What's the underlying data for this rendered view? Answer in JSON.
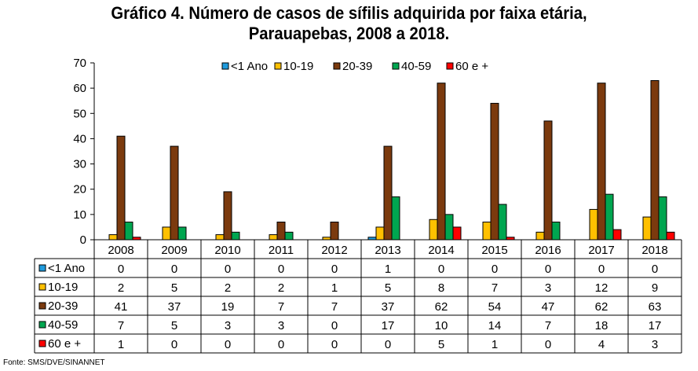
{
  "title_line1": "Gráfico 4. Número de casos de sífilis adquirida por faixa etária,",
  "title_line2": "Parauapebas, 2008 a 2018.",
  "source": "Fonte: SMS/DVE/SINANNET",
  "chart_data": {
    "type": "bar",
    "categories": [
      "2008",
      "2009",
      "2010",
      "2011",
      "2012",
      "2013",
      "2014",
      "2015",
      "2016",
      "2017",
      "2018"
    ],
    "series": [
      {
        "name": "<1 Ano",
        "color": "#1F9BDD",
        "values": [
          0,
          0,
          0,
          0,
          0,
          1,
          0,
          0,
          0,
          0,
          0
        ]
      },
      {
        "name": "10-19",
        "color": "#FFC000",
        "values": [
          2,
          5,
          2,
          2,
          1,
          5,
          8,
          7,
          3,
          12,
          9
        ]
      },
      {
        "name": "20-39",
        "color": "#7B3A0E",
        "values": [
          41,
          37,
          19,
          7,
          7,
          37,
          62,
          54,
          47,
          62,
          63
        ]
      },
      {
        "name": "40-59",
        "color": "#00A650",
        "values": [
          7,
          5,
          3,
          3,
          0,
          17,
          10,
          14,
          7,
          18,
          17
        ]
      },
      {
        "name": "60 e +",
        "color": "#FF0000",
        "values": [
          1,
          0,
          0,
          0,
          0,
          0,
          5,
          1,
          0,
          4,
          3
        ]
      }
    ],
    "ylim": [
      0,
      70
    ],
    "yticks": [
      0,
      10,
      20,
      30,
      40,
      50,
      60,
      70
    ],
    "legend": "top",
    "grid": false,
    "data_table": true
  }
}
